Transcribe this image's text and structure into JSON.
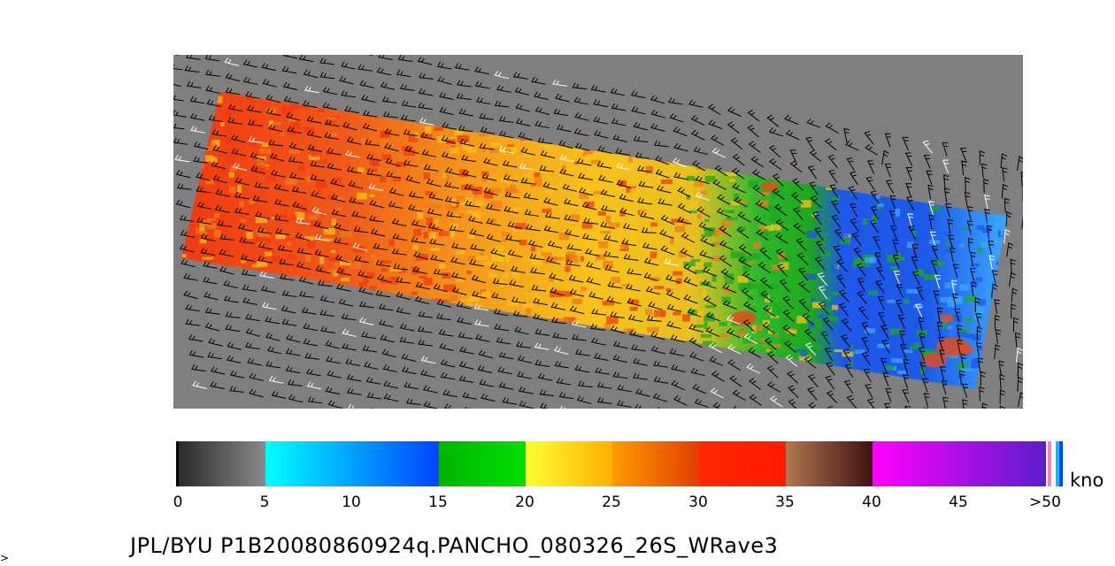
{
  "caption": "JPL/BYU  P1B20080860924q.PANCHO_080326_26S_WRave3",
  "corner_mark": ">",
  "units": "kno",
  "colorbar": {
    "ticks": [
      "0",
      "5",
      "10",
      "15",
      "20",
      "25",
      "30",
      "35",
      "40",
      "45",
      ">50"
    ],
    "segments": [
      {
        "from": "#2a2a2a",
        "to": "#8a8a8a"
      },
      {
        "from": "#00ffff",
        "to": "#0044ff",
        "span": 2
      },
      {
        "from": "#00b400",
        "to": "#00e000"
      },
      {
        "from": "#ffff33",
        "to": "#ffb000"
      },
      {
        "from": "#ff9a00",
        "to": "#e04000"
      },
      {
        "from": "#ff2800",
        "to": "#ff1a00"
      },
      {
        "from": "#b07850",
        "to": "#401010"
      },
      {
        "from": "#ff00ff",
        "to": "#5b1ec8",
        "span": 2
      }
    ],
    "tail_colors": [
      "#ff80c0",
      "#ffffff",
      "#00c0ff",
      "#0040ff"
    ]
  },
  "map": {
    "background": "#7f7f7f",
    "swath_colors": {
      "red": "#f03a10",
      "orange": "#f07a18",
      "yellow": "#f7c21a",
      "green": "#1ea81e",
      "blue": "#1d58e8",
      "cyan": "#3aa8ff"
    }
  }
}
